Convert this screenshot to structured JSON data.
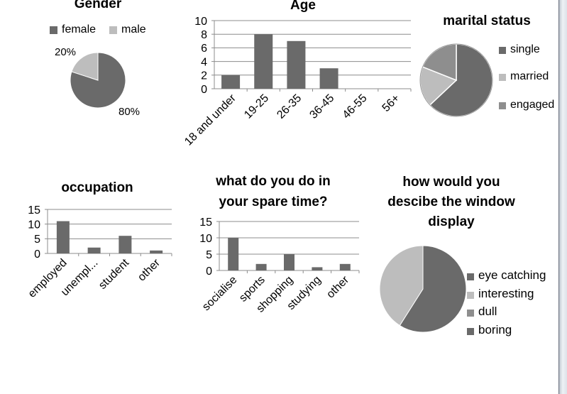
{
  "colors": {
    "dark": "#6a6a6a",
    "mid": "#9a9a9a",
    "light": "#bdbdbd",
    "grid": "#8c8c8c",
    "text": "#000000"
  },
  "chart_data": [
    {
      "id": "gender",
      "type": "pie",
      "title": "Gender",
      "labels": [
        "female",
        "male"
      ],
      "values": [
        80,
        20
      ],
      "data_labels": [
        "80%",
        "20%"
      ],
      "colors": [
        "#6a6a6a",
        "#bdbdbd"
      ],
      "legend": "top"
    },
    {
      "id": "age",
      "type": "bar",
      "title": "Age",
      "categories": [
        "18 and under",
        "19-25",
        "26-35",
        "36-45",
        "46-55",
        "56+"
      ],
      "values": [
        2,
        8,
        7,
        3,
        0,
        0
      ],
      "ylim": [
        0,
        10
      ],
      "yticks": [
        0,
        2,
        4,
        6,
        8,
        10
      ],
      "grid": true
    },
    {
      "id": "marital",
      "type": "pie",
      "title": "marital status",
      "labels": [
        "single",
        "married",
        "engaged"
      ],
      "values": [
        63,
        18,
        19
      ],
      "colors": [
        "#6a6a6a",
        "#bdbdbd",
        "#8e8e8e"
      ],
      "legend": "right"
    },
    {
      "id": "occupation",
      "type": "bar",
      "title": "occupation",
      "categories": [
        "employed",
        "unempl...",
        "student",
        "other"
      ],
      "values": [
        11,
        2,
        6,
        1
      ],
      "ylim": [
        0,
        15
      ],
      "yticks": [
        0,
        5,
        10,
        15
      ],
      "grid": true
    },
    {
      "id": "spare",
      "type": "bar",
      "title": "what do you do in your spare time?",
      "title_lines": [
        "what do you do in",
        "your spare time?"
      ],
      "categories": [
        "socialise",
        "sports",
        "shopping",
        "studying",
        "other"
      ],
      "values": [
        10,
        2,
        5,
        1,
        2
      ],
      "ylim": [
        0,
        15
      ],
      "yticks": [
        0,
        5,
        10,
        15
      ],
      "grid": true
    },
    {
      "id": "window",
      "type": "pie",
      "title": "how would you descibe the window display",
      "title_lines": [
        "how would you",
        "descibe the window",
        "display"
      ],
      "labels": [
        "eye catching",
        "interesting",
        "dull",
        "boring"
      ],
      "values": [
        59,
        41,
        0,
        0
      ],
      "colors": [
        "#6a6a6a",
        "#bdbdbd",
        "#8e8e8e",
        "#6a6a6a"
      ],
      "legend": "right"
    }
  ]
}
